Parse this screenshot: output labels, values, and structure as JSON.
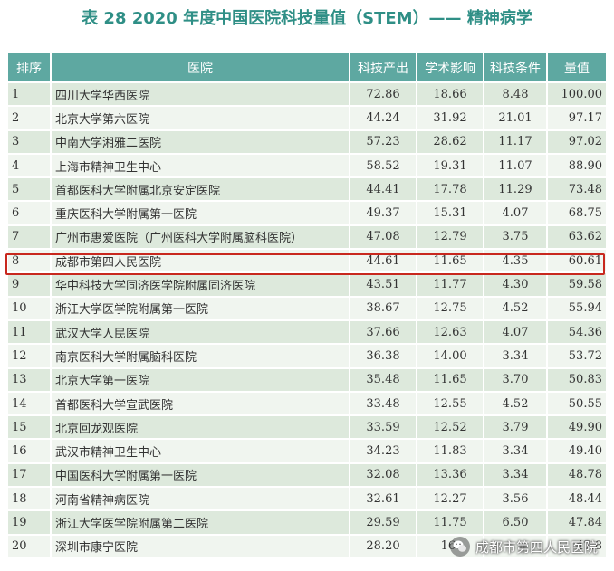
{
  "title": "表 28   2020 年度中国医院科技量值（STEM）—— 精神病学",
  "headers": [
    "排序",
    "医院",
    "科技产出",
    "学术影响",
    "科技条件",
    "量值"
  ],
  "rows": [
    [
      "1",
      "四川大学华西医院",
      "72.86",
      "18.66",
      "8.48",
      "100.00"
    ],
    [
      "2",
      "北京大学第六医院",
      "44.24",
      "31.92",
      "21.01",
      "97.17"
    ],
    [
      "3",
      "中南大学湘雅二医院",
      "57.23",
      "28.62",
      "11.17",
      "97.02"
    ],
    [
      "4",
      "上海市精神卫生中心",
      "58.52",
      "19.31",
      "11.07",
      "88.90"
    ],
    [
      "5",
      "首都医科大学附属北京安定医院",
      "44.41",
      "17.78",
      "11.29",
      "73.48"
    ],
    [
      "6",
      "重庆医科大学附属第一医院",
      "49.37",
      "15.31",
      "4.07",
      "68.75"
    ],
    [
      "7",
      "广州市惠爱医院（广州医科大学附属脑科医院）",
      "47.08",
      "12.79",
      "3.75",
      "63.62"
    ],
    [
      "8",
      "成都市第四人民医院",
      "44.61",
      "11.65",
      "4.35",
      "60.61"
    ],
    [
      "9",
      "华中科技大学同济医学院附属同济医院",
      "43.51",
      "11.77",
      "4.30",
      "59.58"
    ],
    [
      "10",
      "浙江大学医学院附属第一医院",
      "38.67",
      "12.75",
      "4.52",
      "55.94"
    ],
    [
      "11",
      "武汉大学人民医院",
      "37.66",
      "12.63",
      "4.07",
      "54.36"
    ],
    [
      "12",
      "南京医科大学附属脑科医院",
      "36.38",
      "14.00",
      "3.34",
      "53.72"
    ],
    [
      "13",
      "北京大学第一医院",
      "35.48",
      "11.65",
      "3.70",
      "50.83"
    ],
    [
      "14",
      "首都医科大学宣武医院",
      "33.48",
      "12.55",
      "4.52",
      "50.55"
    ],
    [
      "15",
      "北京回龙观医院",
      "33.59",
      "12.52",
      "3.79",
      "49.90"
    ],
    [
      "16",
      "武汉市精神卫生中心",
      "34.23",
      "11.83",
      "3.34",
      "49.40"
    ],
    [
      "17",
      "中国医科大学附属第一医院",
      "32.08",
      "13.36",
      "3.34",
      "48.78"
    ],
    [
      "18",
      "河南省精神病医院",
      "32.61",
      "12.27",
      "3.56",
      "48.44"
    ],
    [
      "19",
      "浙江大学医学院附属第二医院",
      "29.59",
      "11.75",
      "6.50",
      "47.84"
    ],
    [
      "20",
      "深圳市康宁医院",
      "28.20",
      "16.",
      "",
      "47.8"
    ]
  ],
  "highlight_row": 8,
  "highlight_color": "#c8281e",
  "header_color": "#5ea8a1",
  "row_colors": [
    "#dde9dc",
    "#f0f5ef"
  ],
  "watermark": {
    "text": "成都市第四人民医院",
    "icon": "wechat-icon"
  }
}
